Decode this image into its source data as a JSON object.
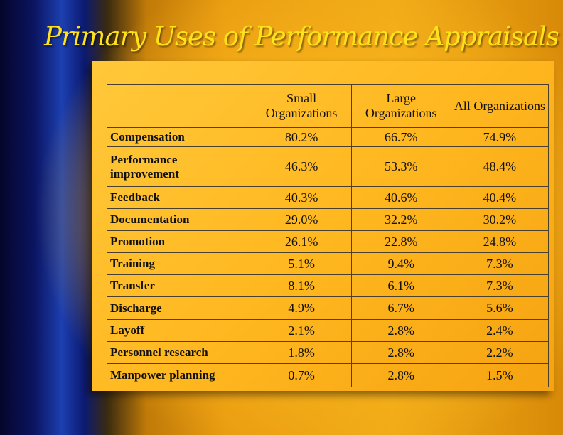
{
  "title": "Primary Uses of Performance Appraisals",
  "table": {
    "header": [
      "",
      "Small Organizations",
      "Large Organizations",
      "All Organizations"
    ],
    "rows": [
      [
        "Compensation",
        "80.2%",
        "66.7%",
        "74.9%"
      ],
      [
        "Performance improvement",
        "46.3%",
        "53.3%",
        "48.4%"
      ],
      [
        "Feedback",
        "40.3%",
        "40.6%",
        "40.4%"
      ],
      [
        "Documentation",
        "29.0%",
        "32.2%",
        "30.2%"
      ],
      [
        "Promotion",
        "26.1%",
        "22.8%",
        "24.8%"
      ],
      [
        "Training",
        "5.1%",
        "9.4%",
        "7.3%"
      ],
      [
        "Transfer",
        "8.1%",
        "6.1%",
        "7.3%"
      ],
      [
        "Discharge",
        "4.9%",
        "6.7%",
        "5.6%"
      ],
      [
        "Layoff",
        "2.1%",
        "2.8%",
        "2.4%"
      ],
      [
        "Personnel research",
        "1.8%",
        "2.8%",
        "2.2%"
      ],
      [
        "Manpower planning",
        "0.7%",
        "2.8%",
        "1.5%"
      ]
    ]
  }
}
